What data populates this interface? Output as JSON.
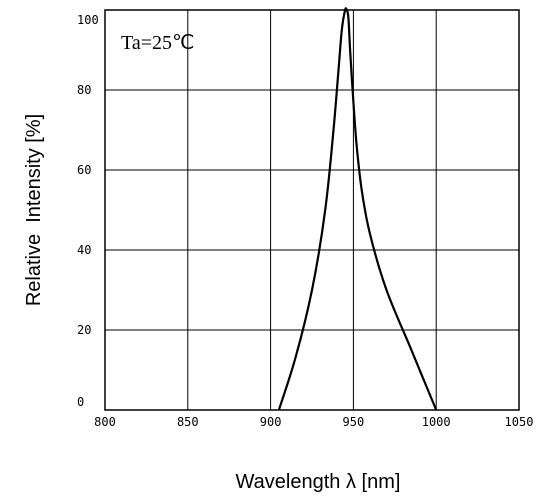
{
  "chart_data": {
    "type": "line",
    "title": "",
    "xlabel": "Wavelength λ [nm]",
    "ylabel": "Relative  Intensity [%]",
    "xlim": [
      800,
      1050
    ],
    "ylim": [
      0,
      100
    ],
    "x_ticks": [
      "800",
      "850",
      "900",
      "950",
      "1000",
      "1050"
    ],
    "y_ticks": [
      "0",
      "20",
      "40",
      "60",
      "80",
      "100"
    ],
    "grid": true,
    "legend": "none",
    "annotation": "Ta=25℃",
    "series": [
      {
        "color": "#000000",
        "x": [
          905,
          915,
          925,
          933,
          938,
          941,
          943,
          945,
          946,
          947,
          948,
          950,
          952,
          955,
          960,
          970,
          985,
          1000
        ],
        "y": [
          0,
          13,
          30,
          50,
          70,
          85,
          95,
          100,
          100,
          98,
          90,
          77,
          66,
          55,
          44,
          30,
          15,
          0
        ]
      }
    ]
  }
}
